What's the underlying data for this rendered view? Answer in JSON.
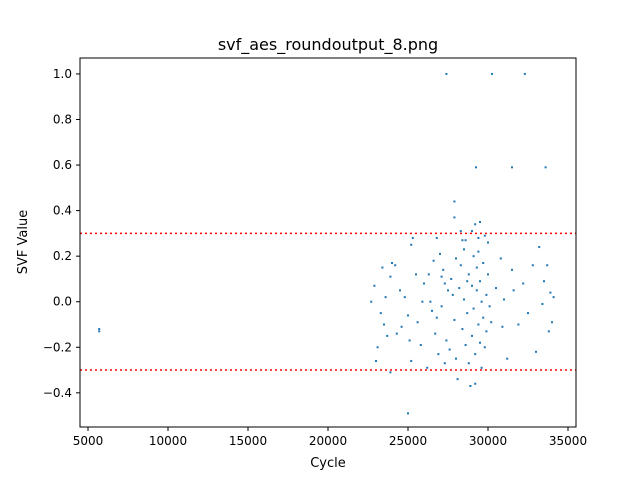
{
  "chart_data": {
    "type": "scatter",
    "title": "svf_aes_roundoutput_8.png",
    "xlabel": "Cycle",
    "ylabel": "SVF Value",
    "xlim": [
      4500,
      35500
    ],
    "ylim": [
      -0.55,
      1.07
    ],
    "xticks": [
      5000,
      10000,
      15000,
      20000,
      25000,
      30000,
      35000
    ],
    "xtick_labels": [
      "5000",
      "10000",
      "15000",
      "20000",
      "25000",
      "30000",
      "35000"
    ],
    "yticks": [
      -0.4,
      -0.2,
      0.0,
      0.2,
      0.4,
      0.6,
      0.8,
      1.0
    ],
    "ytick_labels": [
      "−0.4",
      "−0.2",
      "0.0",
      "0.2",
      "0.4",
      "0.6",
      "0.8",
      "1.0"
    ],
    "grid": false,
    "point_color": "#1f77b4",
    "threshold_color": "#ff0000",
    "thresholds": [
      0.3,
      -0.3
    ],
    "series": [
      {
        "values": [
          [
            5700,
            -0.12
          ],
          [
            5700,
            -0.13
          ],
          [
            27400,
            1.0
          ],
          [
            30250,
            1.0
          ],
          [
            32300,
            1.0
          ],
          [
            29250,
            0.59
          ],
          [
            31500,
            0.59
          ],
          [
            33600,
            0.59
          ],
          [
            27900,
            0.44
          ],
          [
            27900,
            0.37
          ],
          [
            29200,
            0.34
          ],
          [
            29500,
            0.35
          ],
          [
            28300,
            0.31
          ],
          [
            29800,
            0.29
          ],
          [
            29400,
            0.28
          ],
          [
            28600,
            0.27
          ],
          [
            30000,
            0.26
          ],
          [
            26800,
            0.28
          ],
          [
            25300,
            0.28
          ],
          [
            25200,
            0.25
          ],
          [
            24000,
            0.17
          ],
          [
            23400,
            0.15
          ],
          [
            23900,
            0.11
          ],
          [
            22900,
            0.07
          ],
          [
            22700,
            0.0
          ],
          [
            23300,
            -0.05
          ],
          [
            23500,
            -0.1
          ],
          [
            23100,
            -0.2
          ],
          [
            23000,
            -0.26
          ],
          [
            23700,
            -0.15
          ],
          [
            23900,
            -0.31
          ],
          [
            24500,
            0.05
          ],
          [
            24600,
            -0.11
          ],
          [
            24800,
            0.02
          ],
          [
            25000,
            -0.06
          ],
          [
            25100,
            -0.17
          ],
          [
            25200,
            -0.26
          ],
          [
            25500,
            0.12
          ],
          [
            25600,
            -0.09
          ],
          [
            25800,
            -0.19
          ],
          [
            26000,
            0.08
          ],
          [
            26200,
            -0.29
          ],
          [
            26400,
            0.0
          ],
          [
            26500,
            -0.04
          ],
          [
            26600,
            0.18
          ],
          [
            26700,
            -0.14
          ],
          [
            26900,
            -0.23
          ],
          [
            27000,
            0.21
          ],
          [
            27100,
            -0.02
          ],
          [
            27200,
            0.14
          ],
          [
            27300,
            0.08
          ],
          [
            27400,
            -0.17
          ],
          [
            27500,
            0.05
          ],
          [
            27600,
            -0.21
          ],
          [
            27700,
            0.1
          ],
          [
            27800,
            0.03
          ],
          [
            27900,
            -0.08
          ],
          [
            28000,
            0.19
          ],
          [
            28000,
            -0.25
          ],
          [
            28100,
            -0.34
          ],
          [
            28200,
            0.06
          ],
          [
            28300,
            0.16
          ],
          [
            28400,
            -0.12
          ],
          [
            28500,
            0.01
          ],
          [
            28500,
            0.23
          ],
          [
            28600,
            -0.19
          ],
          [
            28700,
            -0.05
          ],
          [
            28800,
            0.12
          ],
          [
            28800,
            -0.27
          ],
          [
            28900,
            -0.37
          ],
          [
            29000,
            0.07
          ],
          [
            29000,
            -0.15
          ],
          [
            29100,
            0.2
          ],
          [
            29100,
            -0.03
          ],
          [
            29200,
            -0.23
          ],
          [
            29200,
            -0.36
          ],
          [
            29300,
            0.15
          ],
          [
            29300,
            0.05
          ],
          [
            29400,
            -0.1
          ],
          [
            29400,
            0.22
          ],
          [
            29500,
            -0.18
          ],
          [
            29500,
            0.09
          ],
          [
            29600,
            -0.29
          ],
          [
            29600,
            0.0
          ],
          [
            29700,
            -0.07
          ],
          [
            29700,
            0.17
          ],
          [
            29800,
            -0.2
          ],
          [
            29900,
            0.03
          ],
          [
            29900,
            -0.13
          ],
          [
            30000,
            0.12
          ],
          [
            30100,
            -0.02
          ],
          [
            30200,
            -0.09
          ],
          [
            30500,
            0.06
          ],
          [
            30800,
            0.19
          ],
          [
            30900,
            -0.11
          ],
          [
            31000,
            0.01
          ],
          [
            31200,
            -0.25
          ],
          [
            31500,
            0.14
          ],
          [
            31600,
            0.05
          ],
          [
            31900,
            -0.1
          ],
          [
            32200,
            0.08
          ],
          [
            32500,
            -0.05
          ],
          [
            32800,
            0.16
          ],
          [
            33000,
            -0.22
          ],
          [
            33200,
            0.24
          ],
          [
            33400,
            -0.01
          ],
          [
            33500,
            0.09
          ],
          [
            33700,
            0.16
          ],
          [
            33800,
            -0.13
          ],
          [
            33900,
            0.04
          ],
          [
            34000,
            -0.09
          ],
          [
            34100,
            0.02
          ],
          [
            24300,
            -0.14
          ],
          [
            24200,
            0.16
          ],
          [
            23600,
            0.02
          ],
          [
            25900,
            0.0
          ],
          [
            26300,
            0.12
          ],
          [
            26800,
            -0.07
          ],
          [
            27300,
            -0.27
          ],
          [
            28400,
            0.27
          ],
          [
            29000,
            0.31
          ],
          [
            27100,
            0.11
          ],
          [
            28700,
            0.09
          ],
          [
            25000,
            -0.49
          ]
        ]
      }
    ]
  }
}
